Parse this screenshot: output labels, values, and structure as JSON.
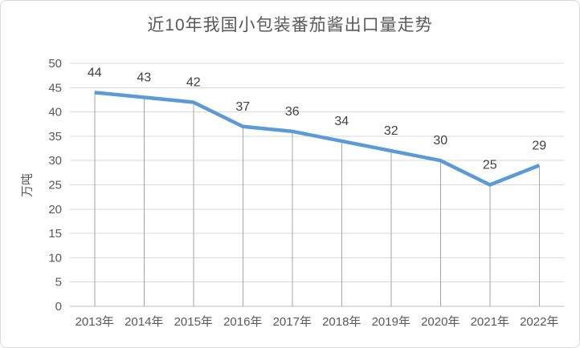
{
  "chart_data": {
    "type": "line",
    "title": "近10年我国小包装番茄酱出口量走势",
    "ylabel": "万吨",
    "xlabel": "",
    "categories": [
      "2013年",
      "2014年",
      "2015年",
      "2016年",
      "2017年",
      "2018年",
      "2019年",
      "2020年",
      "2021年",
      "2022年"
    ],
    "values": [
      44,
      43,
      42,
      37,
      36,
      34,
      32,
      30,
      25,
      29
    ],
    "data_labels": [
      "44",
      "43",
      "42",
      "37",
      "36",
      "34",
      "32",
      "30",
      "25",
      "29"
    ],
    "yticks": [
      0,
      5,
      10,
      15,
      20,
      25,
      30,
      35,
      40,
      45,
      50
    ],
    "ylim": [
      0,
      50
    ],
    "grid": "horizontal",
    "drop_lines": true,
    "legend": "none",
    "data_label_position": "above",
    "colors": {
      "line": "#5B9BD5",
      "gridline": "#D9D9D9",
      "axis_line": "#BFBFBF",
      "drop_line": "#A6A6A6",
      "tick_label": "#595959",
      "data_label": "#404040",
      "title": "#595959",
      "frame_border": "#D9D9D9",
      "background": "#FFFFFF"
    }
  }
}
